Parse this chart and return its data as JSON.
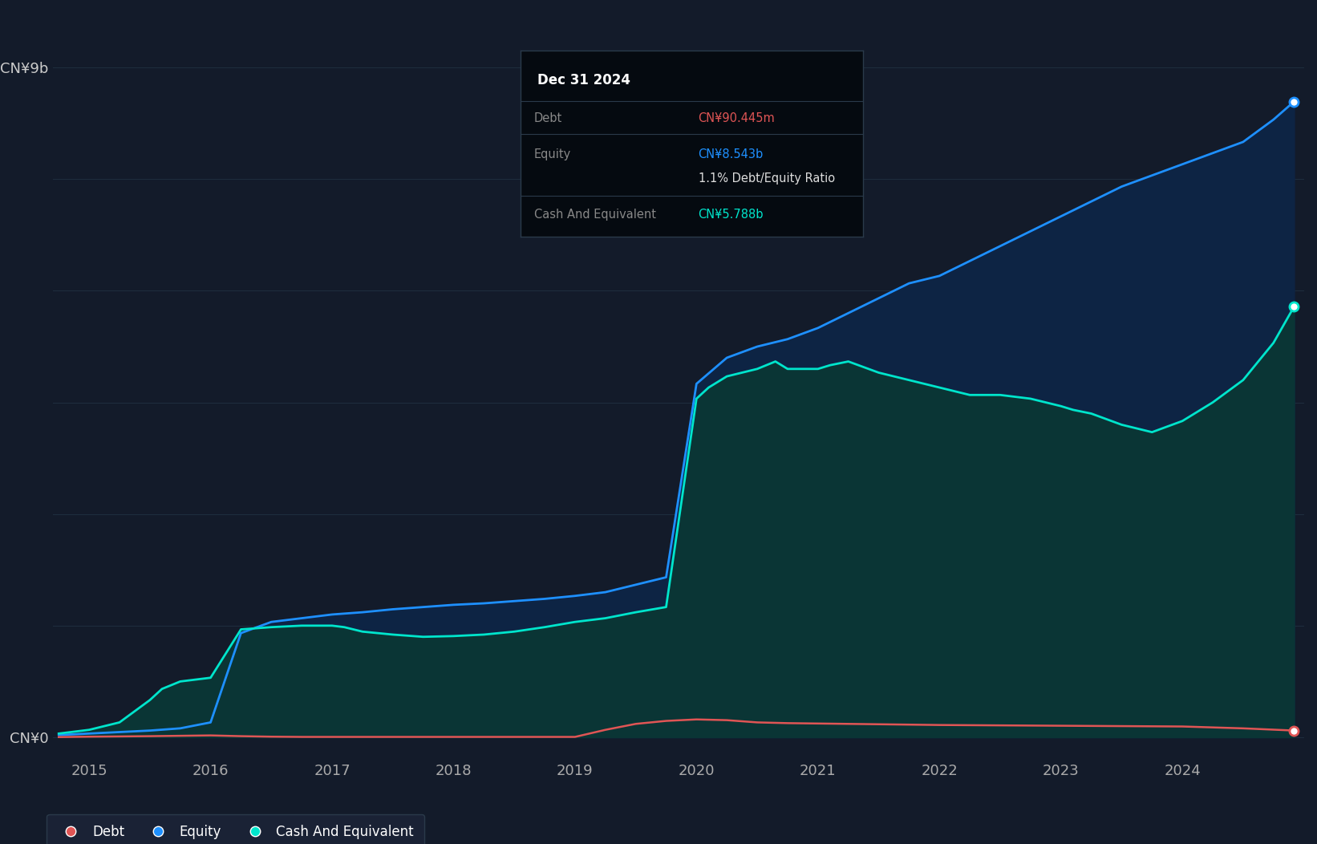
{
  "background_color": "#131b2a",
  "plot_bg_color": "#131b2a",
  "grid_color": "#1e2d3d",
  "equity_color": "#1e90ff",
  "equity_fill": "#0d2444",
  "cash_color": "#00e5cc",
  "cash_fill": "#0a3535",
  "debt_color": "#e05555",
  "tooltip_bg": "#050a10",
  "tooltip_border": "#2a3a4a",
  "tooltip_title": "Dec 31 2024",
  "tooltip_debt_label": "Debt",
  "tooltip_debt_value": "CN¥90.445m",
  "tooltip_equity_label": "Equity",
  "tooltip_equity_value": "CN¥8.543b",
  "tooltip_ratio": "1.1% Debt/Equity Ratio",
  "tooltip_cash_label": "Cash And Equivalent",
  "tooltip_cash_value": "CN¥5.788b",
  "ylabel_top": "CN¥9b",
  "ylabel_zero": "CN¥0",
  "x_ticks": [
    2015,
    2016,
    2017,
    2018,
    2019,
    2020,
    2021,
    2022,
    2023,
    2024
  ],
  "ylim_max": 9000000000,
  "dates_equity": [
    2014.75,
    2015.0,
    2015.25,
    2015.5,
    2015.75,
    2016.0,
    2016.25,
    2016.5,
    2016.75,
    2017.0,
    2017.25,
    2017.5,
    2017.75,
    2018.0,
    2018.25,
    2018.5,
    2018.75,
    2019.0,
    2019.25,
    2019.5,
    2019.75,
    2020.0,
    2020.25,
    2020.5,
    2020.75,
    2021.0,
    2021.25,
    2021.5,
    2021.75,
    2022.0,
    2022.25,
    2022.5,
    2022.75,
    2023.0,
    2023.25,
    2023.5,
    2023.75,
    2024.0,
    2024.25,
    2024.5,
    2024.75,
    2024.92
  ],
  "equity_values": [
    30000000,
    50000000,
    70000000,
    90000000,
    120000000,
    200000000,
    1400000000,
    1550000000,
    1600000000,
    1650000000,
    1680000000,
    1720000000,
    1750000000,
    1780000000,
    1800000000,
    1830000000,
    1860000000,
    1900000000,
    1950000000,
    2050000000,
    2150000000,
    4750000000,
    5100000000,
    5250000000,
    5350000000,
    5500000000,
    5700000000,
    5900000000,
    6100000000,
    6200000000,
    6400000000,
    6600000000,
    6800000000,
    7000000000,
    7200000000,
    7400000000,
    7550000000,
    7700000000,
    7850000000,
    8000000000,
    8300000000,
    8543000000
  ],
  "dates_cash": [
    2014.75,
    2015.0,
    2015.25,
    2015.5,
    2015.6,
    2015.75,
    2016.0,
    2016.25,
    2016.5,
    2016.75,
    2017.0,
    2017.1,
    2017.25,
    2017.5,
    2017.75,
    2018.0,
    2018.25,
    2018.5,
    2018.75,
    2019.0,
    2019.25,
    2019.5,
    2019.75,
    2020.0,
    2020.1,
    2020.25,
    2020.5,
    2020.65,
    2020.75,
    2021.0,
    2021.1,
    2021.25,
    2021.5,
    2021.75,
    2022.0,
    2022.25,
    2022.5,
    2022.75,
    2023.0,
    2023.1,
    2023.25,
    2023.5,
    2023.75,
    2024.0,
    2024.25,
    2024.5,
    2024.75,
    2024.92
  ],
  "cash_values": [
    50000000,
    100000000,
    200000000,
    500000000,
    650000000,
    750000000,
    800000000,
    1450000000,
    1480000000,
    1500000000,
    1500000000,
    1480000000,
    1420000000,
    1380000000,
    1350000000,
    1360000000,
    1380000000,
    1420000000,
    1480000000,
    1550000000,
    1600000000,
    1680000000,
    1750000000,
    4550000000,
    4700000000,
    4850000000,
    4950000000,
    5050000000,
    4950000000,
    4950000000,
    5000000000,
    5050000000,
    4900000000,
    4800000000,
    4700000000,
    4600000000,
    4600000000,
    4550000000,
    4450000000,
    4400000000,
    4350000000,
    4200000000,
    4100000000,
    4250000000,
    4500000000,
    4800000000,
    5300000000,
    5788000000
  ],
  "dates_debt": [
    2014.75,
    2015.0,
    2015.5,
    2015.75,
    2016.0,
    2016.25,
    2016.5,
    2016.75,
    2017.0,
    2017.5,
    2018.0,
    2018.5,
    2019.0,
    2019.25,
    2019.5,
    2019.75,
    2020.0,
    2020.25,
    2020.5,
    2020.75,
    2021.0,
    2021.25,
    2021.5,
    2021.75,
    2022.0,
    2022.5,
    2023.0,
    2023.5,
    2024.0,
    2024.5,
    2024.92
  ],
  "debt_values": [
    3000000,
    8000000,
    15000000,
    20000000,
    25000000,
    15000000,
    8000000,
    5000000,
    5000000,
    5000000,
    5000000,
    5000000,
    5000000,
    100000000,
    180000000,
    220000000,
    240000000,
    230000000,
    200000000,
    190000000,
    185000000,
    180000000,
    175000000,
    170000000,
    165000000,
    160000000,
    155000000,
    150000000,
    145000000,
    120000000,
    90445000
  ]
}
